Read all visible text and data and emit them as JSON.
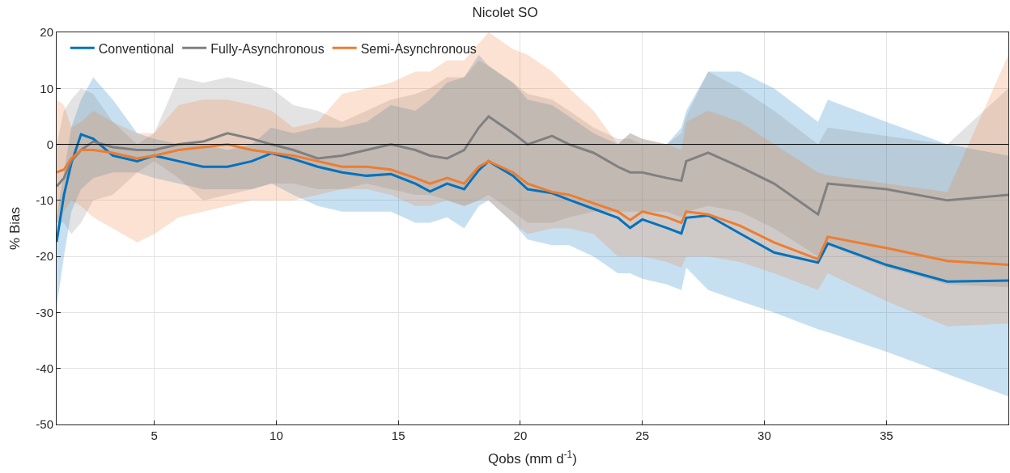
{
  "chart_data": {
    "type": "line",
    "title": "Nicolet SO",
    "xlabel": "Qobs (mm d$^{-1}$)",
    "ylabel": "% Bias",
    "x": [
      1,
      1.3,
      1.6,
      2,
      2.5,
      3.3,
      4.3,
      5,
      6,
      7,
      8,
      9,
      9.8,
      10.7,
      11.7,
      12.7,
      13.7,
      14.7,
      15.7,
      16.3,
      17,
      17.7,
      18.3,
      18.7,
      19.7,
      20.3,
      21.3,
      22,
      23,
      24,
      24.5,
      25,
      26,
      26.6,
      26.8,
      27.7,
      29,
      30.4,
      32.2,
      32.6,
      35,
      37.5,
      40
    ],
    "series": [
      {
        "name": "Conventional",
        "color": "#0072bd",
        "values": [
          -17.4,
          -9,
          -3.4,
          1.8,
          1,
          -2,
          -3,
          -2,
          -3,
          -4,
          -4,
          -3,
          -1.6,
          -2.6,
          -4,
          -5,
          -5.6,
          -5.3,
          -7,
          -8.4,
          -7,
          -8,
          -4.6,
          -3,
          -5.6,
          -8,
          -8.7,
          -9.9,
          -11.5,
          -13.1,
          -14.9,
          -13.4,
          -14.9,
          -15.9,
          -13.1,
          -12.7,
          -15.9,
          -19.3,
          -21.1,
          -17.7,
          -21.5,
          -24.5,
          -24.3
        ],
        "upper": [
          -13,
          -5,
          3,
          8,
          12,
          8,
          2,
          1,
          0,
          0,
          -1,
          0,
          3,
          2,
          3,
          3,
          4,
          7,
          6,
          8,
          11,
          12,
          16,
          14,
          11,
          8,
          7,
          5,
          2,
          0,
          2,
          1,
          0,
          3,
          6,
          13,
          13,
          10,
          4,
          8,
          4,
          0,
          -2
        ],
        "lower": [
          -29,
          -20,
          -12,
          -8,
          -6,
          -5,
          -5,
          -6,
          -7,
          -8,
          -8,
          -8,
          -7,
          -9,
          -11,
          -12,
          -12,
          -12,
          -14,
          -14,
          -13,
          -15,
          -11,
          -10,
          -14,
          -17,
          -18,
          -18,
          -20,
          -23,
          -23,
          -24,
          -25,
          -26,
          -22,
          -26,
          -28,
          -30,
          -33,
          -33.5,
          -37,
          -41,
          -45
        ]
      },
      {
        "name": "Fully-Asynchronous",
        "color": "#808080",
        "values": [
          -7.5,
          -6,
          -3,
          -1,
          0.5,
          -0.5,
          -1,
          -1,
          0,
          0.5,
          2,
          1,
          0,
          -1,
          -2.5,
          -2,
          -1,
          0,
          -1,
          -2,
          -2.5,
          -1,
          3,
          5,
          2,
          0,
          1.5,
          0,
          -1.5,
          -4,
          -5,
          -5,
          -6,
          -6.5,
          -3,
          -1.5,
          -4,
          -7,
          -12.5,
          -7,
          -8,
          -10,
          -9
        ],
        "upper": [
          0,
          6,
          8,
          10,
          9,
          4,
          0,
          2,
          12,
          11,
          12,
          11,
          10,
          7,
          6,
          4,
          6,
          8,
          9,
          10,
          12,
          12,
          15,
          14,
          11,
          9,
          8,
          6,
          3,
          1,
          1,
          0,
          0,
          2,
          5,
          13,
          10,
          6,
          0,
          3,
          1.5,
          0,
          10
        ],
        "lower": [
          -14,
          -14,
          -16,
          -14,
          -10,
          -9,
          -5,
          -3,
          -6,
          -10,
          -9,
          -8,
          -7,
          -7,
          -8,
          -8,
          -7,
          -8,
          -9,
          -9,
          -10,
          -11,
          -10,
          -9,
          -12,
          -14,
          -14,
          -13,
          -12,
          -12,
          -12,
          -12,
          -12,
          -13,
          -12,
          -11,
          -12,
          -15,
          -20,
          -18,
          -22,
          -25,
          -25.5
        ]
      },
      {
        "name": "Semi-Asynchronous",
        "color": "#ed7d31",
        "values": [
          -5,
          -4.5,
          -2.5,
          -1,
          -1,
          -1.5,
          -2.5,
          -2,
          -1,
          -0.5,
          0,
          -1,
          -1.5,
          -2,
          -3,
          -4,
          -4,
          -4.5,
          -6,
          -7,
          -6,
          -7,
          -4,
          -3,
          -5,
          -7,
          -8.5,
          -9,
          -10.5,
          -12,
          -13.5,
          -12,
          -13,
          -14,
          -12,
          -12.5,
          -14.5,
          -17.5,
          -20.5,
          -16.5,
          -18.5,
          -20.8,
          -21.5
        ],
        "upper": [
          8,
          7,
          3,
          4,
          6,
          4,
          2,
          2,
          7,
          8,
          8,
          7,
          6,
          3,
          4,
          9,
          10,
          11,
          13,
          13,
          15,
          15,
          18,
          20,
          17,
          16,
          13,
          10,
          6,
          0,
          2,
          1,
          0,
          -1,
          4,
          6,
          4,
          0,
          -5,
          -5.5,
          -7,
          -8.5,
          16
        ],
        "lower": [
          -14,
          -12,
          -10,
          -11,
          -13,
          -15,
          -17.5,
          -16,
          -13,
          -12,
          -11,
          -10,
          -10,
          -10,
          -9,
          -8,
          -8,
          -9,
          -11,
          -11,
          -10,
          -11,
          -10,
          -10,
          -14,
          -16,
          -15,
          -15,
          -16,
          -20,
          -20,
          -20,
          -21,
          -22,
          -20,
          -20,
          -21,
          -23,
          -26,
          -23,
          -28,
          -32.5,
          -32
        ]
      }
    ],
    "xlim": [
      1,
      40
    ],
    "xticks": [
      5,
      10,
      15,
      20,
      25,
      30,
      35
    ],
    "ylim": [
      -50,
      20
    ],
    "yticks": [
      -50,
      -40,
      -30,
      -20,
      -10,
      0,
      10,
      20
    ],
    "ref_lines": [
      {
        "axis": "y",
        "value": 0,
        "color": "#000000"
      }
    ],
    "grid": true,
    "legend": "top left",
    "line_style": "solid",
    "marker": "none"
  }
}
